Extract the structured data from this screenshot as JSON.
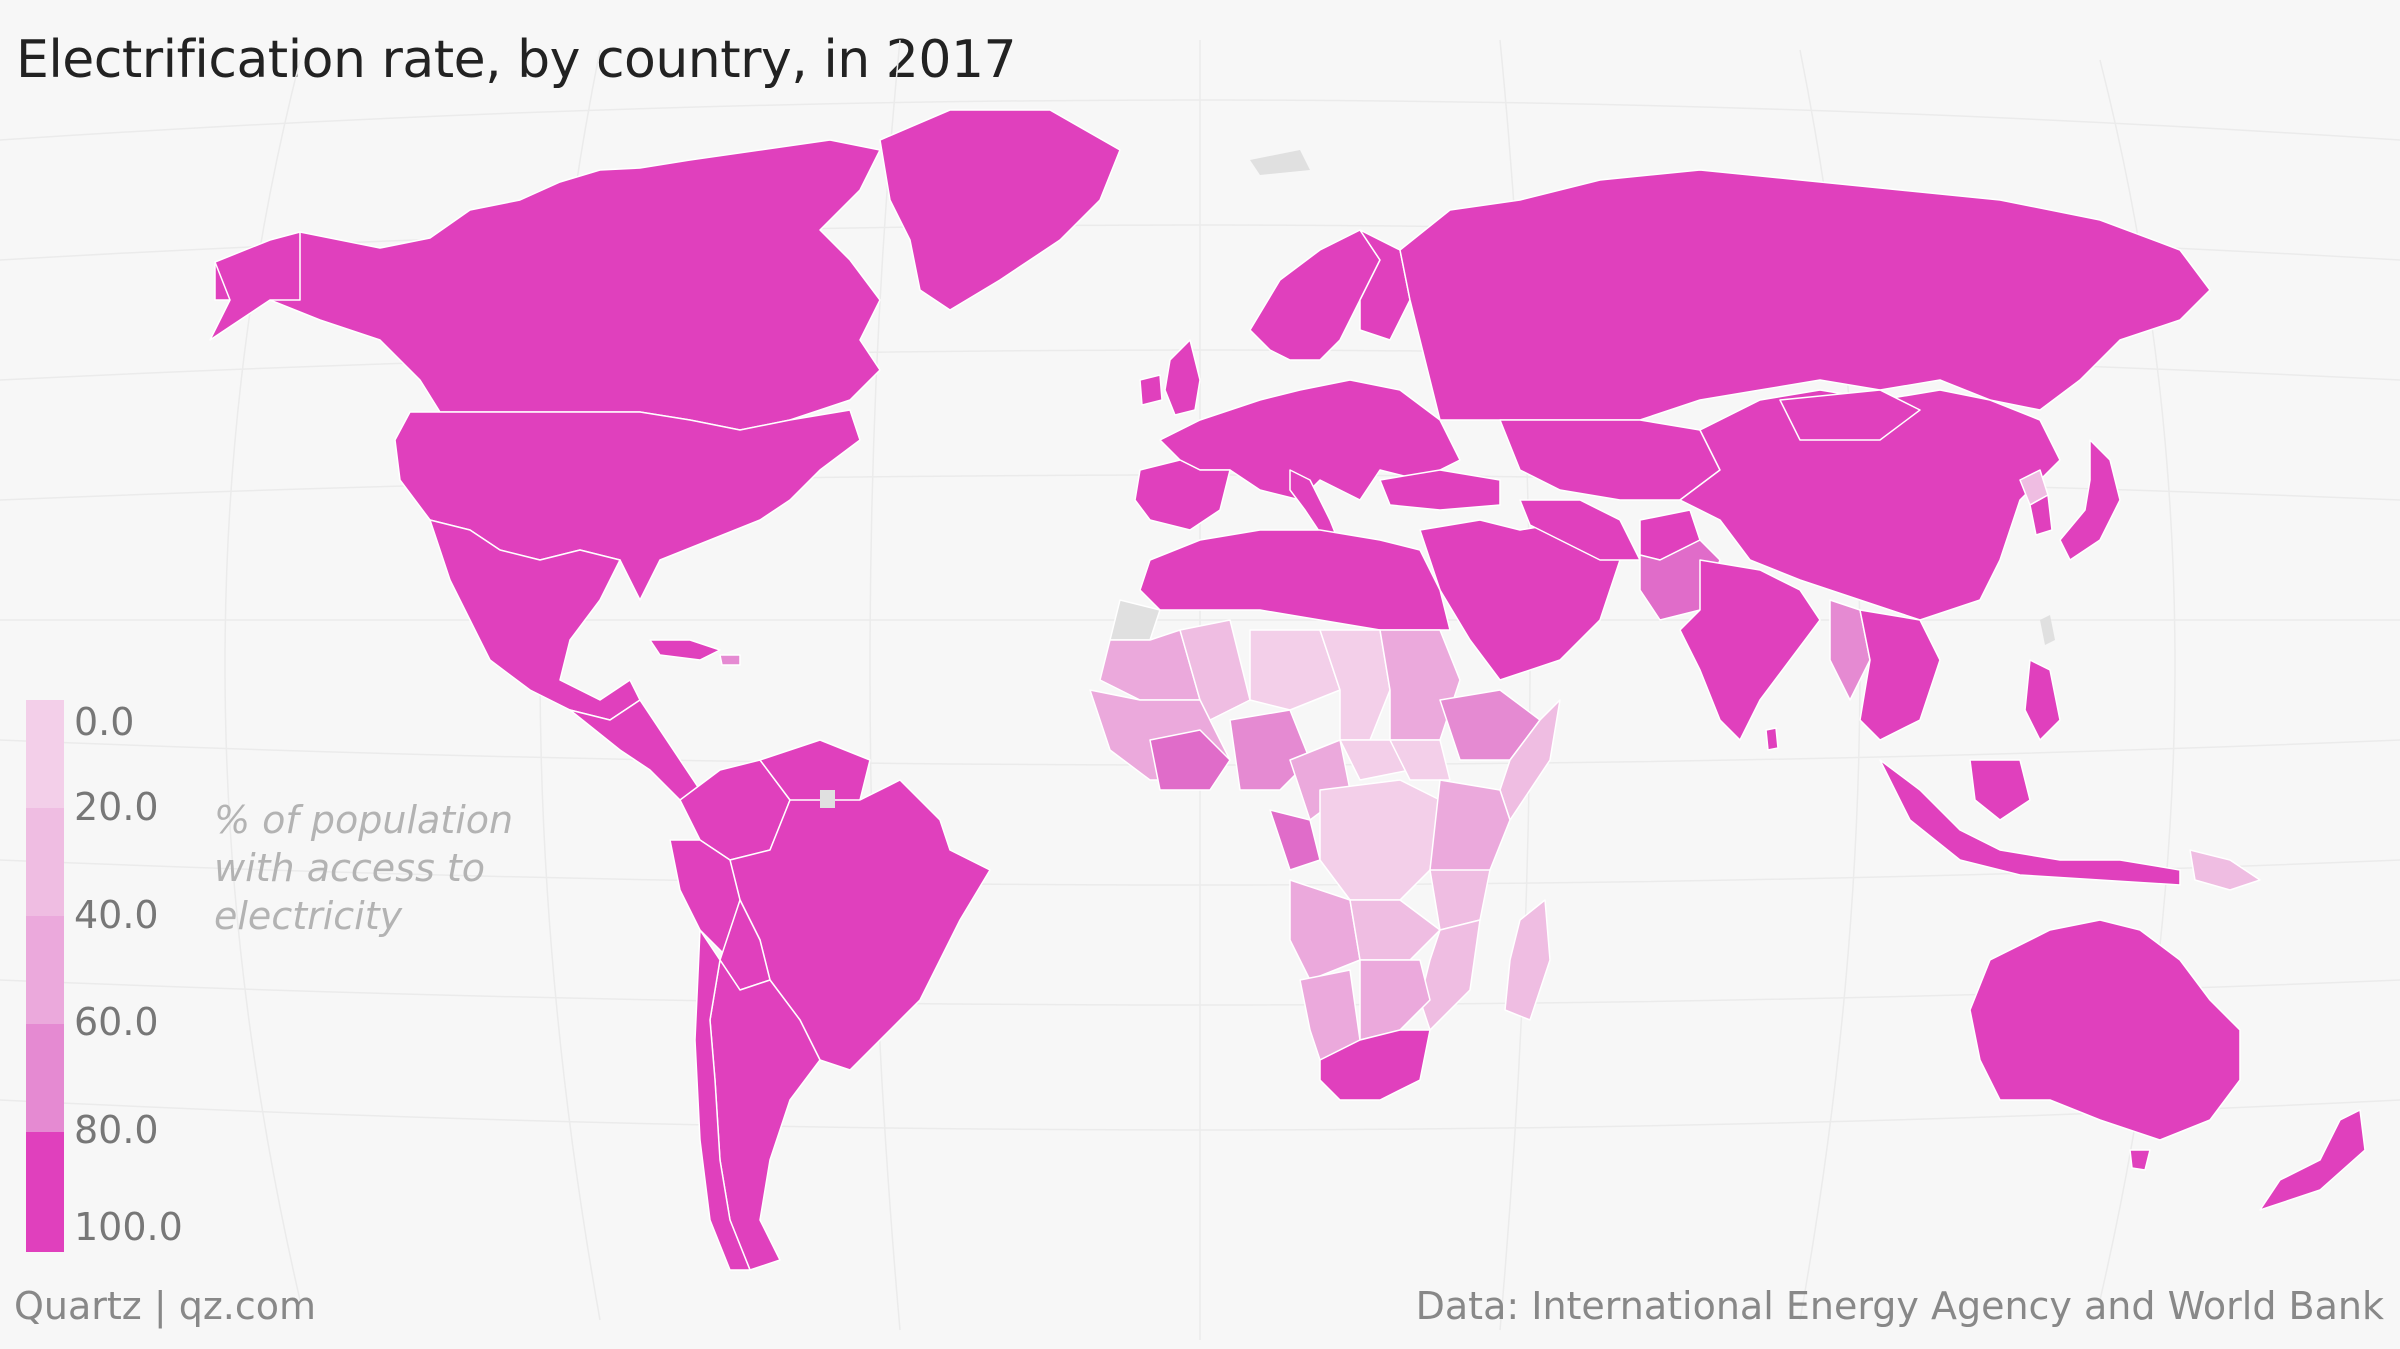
{
  "title": "Electrification rate, by country, in 2017",
  "legend": {
    "title_line1": "% of population",
    "title_line2": "with access to",
    "title_line3": "electricity",
    "ticks": [
      "0.0",
      "20.0",
      "40.0",
      "60.0",
      "80.0",
      "100.0"
    ],
    "colors": [
      "#f3cfe9",
      "#efbde2",
      "#eba9dc",
      "#e58ad2",
      "#e06cc9",
      "#e040bd"
    ]
  },
  "footer": {
    "brand": "Quartz | qz.com",
    "source": "Data: International Energy Agency and World Bank"
  },
  "colors": {
    "background": "#f7f7f7",
    "no_data": "#e0e0e0",
    "border": "#ffffff",
    "highest": "#e040bd"
  }
}
